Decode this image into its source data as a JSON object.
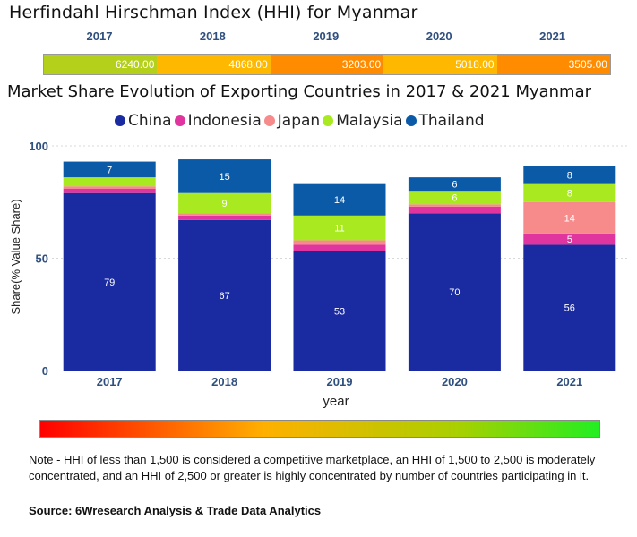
{
  "hhi": {
    "title": "Herfindahl Hirschman Index (HHI) for Myanmar",
    "years": [
      "2017",
      "2018",
      "2019",
      "2020",
      "2021"
    ],
    "values": [
      "6240.00",
      "4868.00",
      "3203.00",
      "5018.00",
      "3505.00"
    ],
    "colors": [
      "#b5d01a",
      "#ffb800",
      "#ff8c00",
      "#ffb800",
      "#ff8c00"
    ]
  },
  "chart_data": {
    "type": "bar",
    "stacked": true,
    "title": "Market Share Evolution of Exporting Countries in 2017 & 2021 Myanmar",
    "xlabel": "year",
    "ylabel": "Share(% Value Share)",
    "categories": [
      "2017",
      "2018",
      "2019",
      "2020",
      "2021"
    ],
    "ylim": [
      0,
      100
    ],
    "yticks": [
      "0",
      "50",
      "100"
    ],
    "legend_position": "top",
    "series": [
      {
        "name": "China",
        "color": "#1a2aa0",
        "values": [
          79,
          67,
          53,
          70,
          56
        ],
        "labels": [
          "79",
          "67",
          "53",
          "70",
          "56"
        ]
      },
      {
        "name": "Indonesia",
        "color": "#e0359f",
        "values": [
          2,
          2,
          3,
          3,
          5
        ],
        "labels": [
          "",
          "",
          "",
          "",
          "5"
        ]
      },
      {
        "name": "Japan",
        "color": "#f78a8a",
        "values": [
          1,
          1,
          2,
          1,
          14
        ],
        "labels": [
          "",
          "",
          "",
          "",
          "14"
        ]
      },
      {
        "name": "Malaysia",
        "color": "#a8ea1f",
        "values": [
          4,
          9,
          11,
          6,
          8
        ],
        "labels": [
          "",
          "9",
          "11",
          "6",
          "8"
        ]
      },
      {
        "name": "Thailand",
        "color": "#0a5aa8",
        "values": [
          7,
          15,
          14,
          6,
          8
        ],
        "labels": [
          "7",
          "15",
          "14",
          "6",
          "8"
        ]
      }
    ]
  },
  "gradient_legend": {
    "start_color": "#ff0000",
    "end_color": "#22ee22"
  },
  "note": "Note - HHI of less than 1,500 is considered a competitive marketplace, an HHI of 1,500 to 2,500 is moderately concentrated, and an HHI of 2,500 or greater is highly concentrated by number of countries participating in it.",
  "source": "Source: 6Wresearch Analysis & Trade Data Analytics"
}
